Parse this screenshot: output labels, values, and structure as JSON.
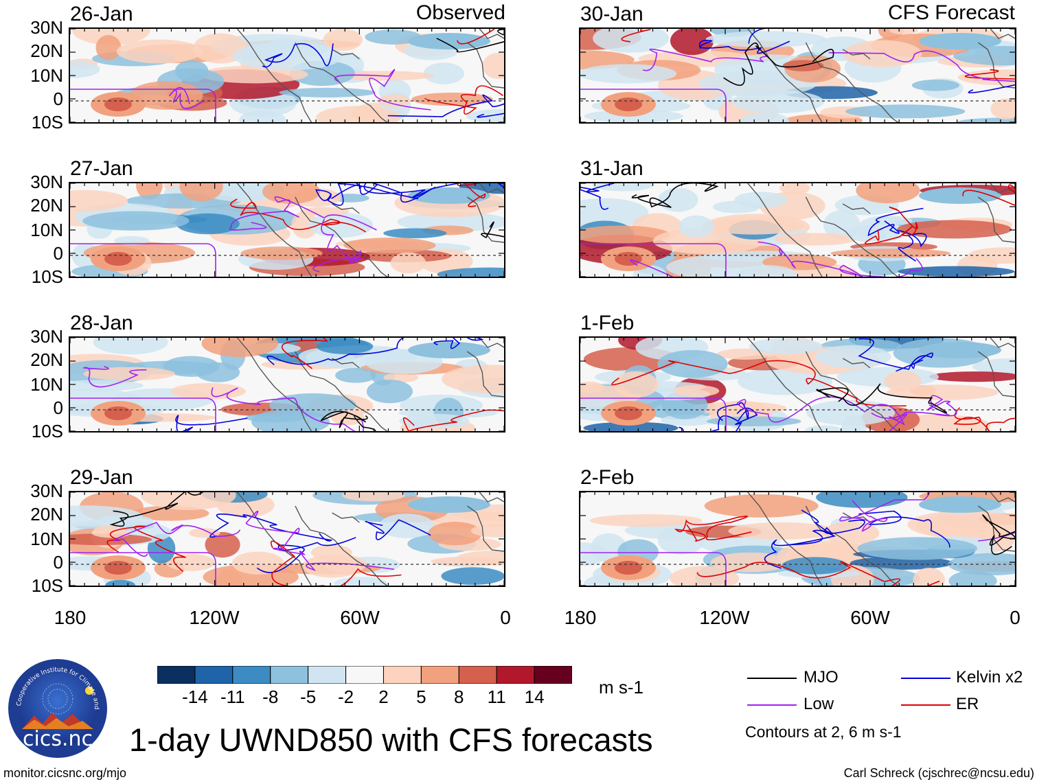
{
  "left_header": "Observed",
  "right_header": "CFS Forecast",
  "panels_left": [
    {
      "date": "26-Jan"
    },
    {
      "date": "27-Jan"
    },
    {
      "date": "28-Jan"
    },
    {
      "date": "29-Jan"
    }
  ],
  "panels_right": [
    {
      "date": "30-Jan"
    },
    {
      "date": "31-Jan"
    },
    {
      "date": "1-Feb"
    },
    {
      "date": "2-Feb"
    }
  ],
  "lat_labels": [
    "30N",
    "20N",
    "10N",
    "0",
    "10S"
  ],
  "lon_labels": [
    "180",
    "120W",
    "60W",
    "0"
  ],
  "colorbar": {
    "ticks": [
      "-14",
      "-11",
      "-8",
      "-5",
      "-2",
      "2",
      "5",
      "8",
      "11",
      "14"
    ],
    "colors": [
      "#0b2f5e",
      "#1f64a8",
      "#3c8cc3",
      "#8dc1de",
      "#d0e5f1",
      "#f7f7f7",
      "#fbd3bf",
      "#f2a17e",
      "#d5604d",
      "#b2182b",
      "#67001f"
    ],
    "units": "m s-1"
  },
  "legend": {
    "items": [
      {
        "label": "MJO",
        "color": "#000000"
      },
      {
        "label": "Kelvin x2",
        "color": "#0000dd"
      },
      {
        "label": "Low",
        "color": "#a020f0"
      },
      {
        "label": "ER",
        "color": "#dd0000"
      }
    ],
    "note": "Contours at 2, 6 m s-1"
  },
  "logo_text": "cics.nc",
  "logo_ring_text": "Cooperative Institute for Climate and Satellites",
  "title": "1-day UWND850 with CFS forecasts",
  "footer_left": "monitor.cicsnc.org/mjo",
  "footer_right": "Carl Schreck (cjschrec@ncsu.edu)"
}
